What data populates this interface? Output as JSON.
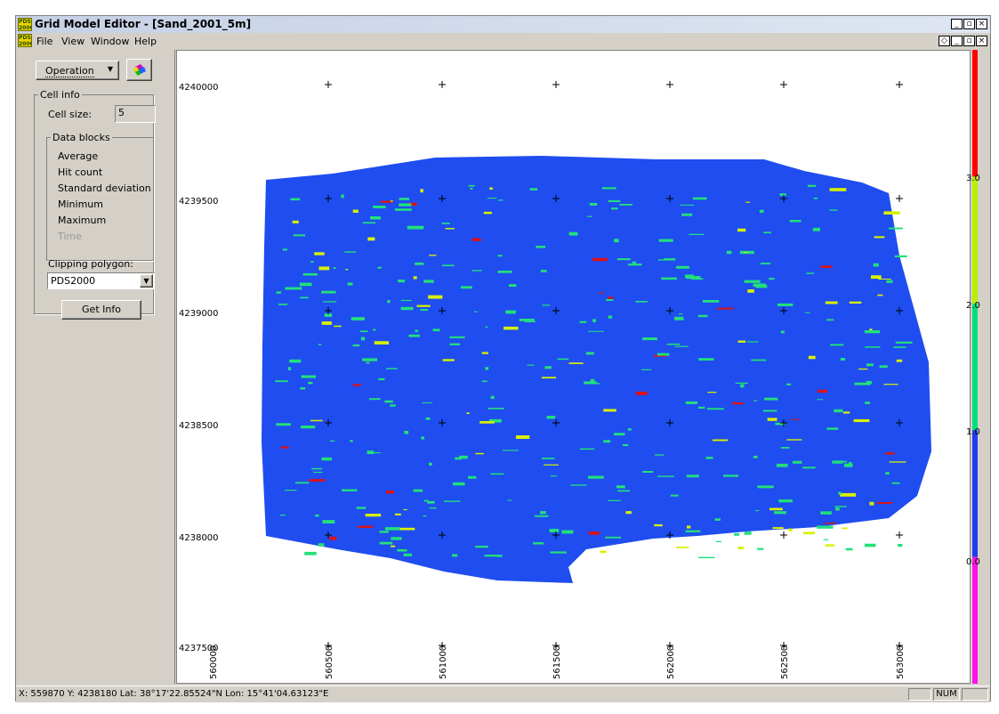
{
  "window": {
    "title": "Grid Model Editor - [Sand_2001_5m]",
    "app_icon_text": "PDS 2000",
    "controls": {
      "minimize": "_",
      "restore": "▫",
      "close": "×"
    },
    "child_controls": {
      "pin": "◇",
      "minimize": "_",
      "restore": "▫",
      "close": "×"
    }
  },
  "menu": [
    "File",
    "View",
    "Window",
    "Help"
  ],
  "left_panel": {
    "operation_button": "Operation",
    "cell_info": {
      "legend": "Cell info",
      "cell_size_label": "Cell size:",
      "cell_size_value": "5",
      "data_blocks": {
        "legend": "Data blocks",
        "items": [
          {
            "label": "Average",
            "enabled": true
          },
          {
            "label": "Hit count",
            "enabled": true
          },
          {
            "label": "Standard deviation",
            "enabled": true
          },
          {
            "label": "Minimum",
            "enabled": true
          },
          {
            "label": "Maximum",
            "enabled": true
          },
          {
            "label": "Time",
            "enabled": false
          }
        ]
      },
      "clipping_label": "Clipping polygon:",
      "clipping_value": "PDS2000",
      "get_info_button": "Get Info"
    }
  },
  "plot": {
    "y_ticks": [
      "4240000",
      "4239500",
      "4239000",
      "4238500",
      "4238000",
      "4237500"
    ],
    "x_ticks": [
      "560000",
      "560500",
      "561000",
      "561500",
      "562000",
      "562500",
      "563000"
    ],
    "colors": {
      "blue": "#1f4df0",
      "green": "#22e07a",
      "yellow": "#d8f000",
      "red": "#e01010",
      "magenta": "#ff10e8"
    }
  },
  "colorbar": {
    "labels": [
      "3.0",
      "2.0",
      "1.0",
      "0.0"
    ],
    "segments": [
      "#ff0000",
      "#b8f000",
      "#00e07a",
      "#1f3df0",
      "#ff10e8"
    ]
  },
  "status": {
    "text": "X: 559870  Y: 4238180  Lat:  38°17'22.85524\"N  Lon:  15°41'04.63123\"E",
    "num": "NUM"
  }
}
